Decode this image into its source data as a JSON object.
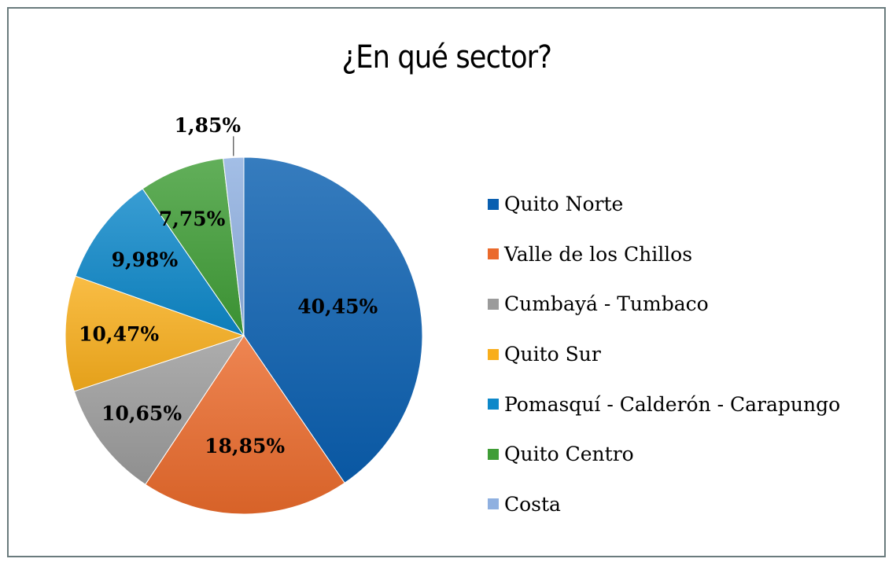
{
  "chart_data": {
    "type": "pie",
    "title": "¿En qué sector?",
    "categories": [
      "Quito Norte",
      "Valle de los Chillos",
      "Cumbayá - Tumbaco",
      "Quito Sur",
      "Pomasquí - Calderón - Carapungo",
      "Quito Centro",
      "Costa"
    ],
    "values": [
      40.45,
      18.85,
      10.65,
      10.47,
      9.98,
      7.75,
      1.85
    ],
    "data_labels": [
      "40,45%",
      "18,85%",
      "10,65%",
      "10,47%",
      "9,98%",
      "7,75%",
      "1,85%"
    ],
    "colors": [
      "#0a5fb0",
      "#ea6a2c",
      "#9b9b9b",
      "#f8ae1c",
      "#0d88c9",
      "#3f9d36",
      "#8fb0e0"
    ],
    "legend_position": "right"
  }
}
